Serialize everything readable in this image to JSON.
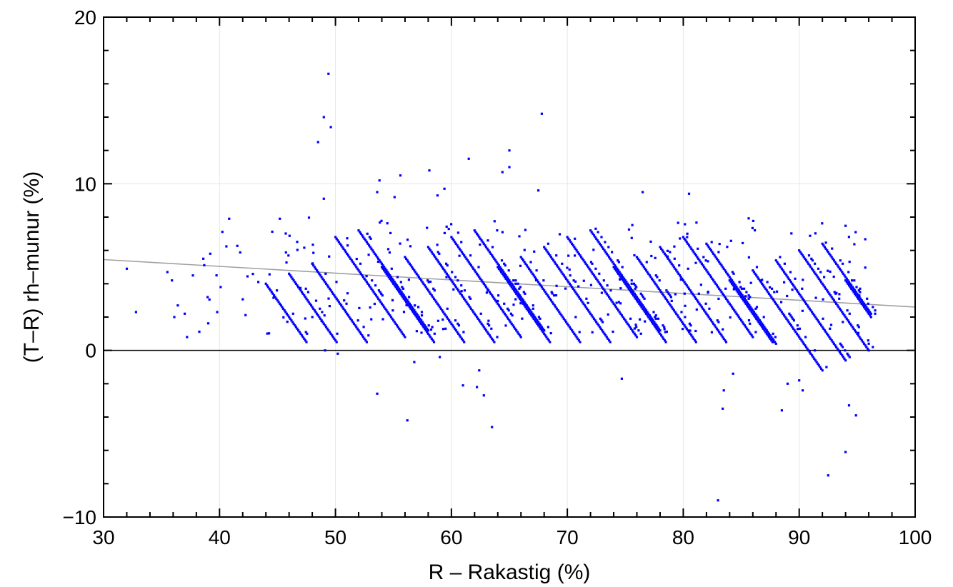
{
  "chart_data": {
    "type": "scatter",
    "xlabel": "R – Rakastig (%)",
    "ylabel": "(T–R) rh–munur (%)",
    "xlim": [
      30,
      100
    ],
    "ylim": [
      -10,
      20
    ],
    "x_ticks": [
      "30",
      "40",
      "50",
      "60",
      "70",
      "80",
      "90",
      "100"
    ],
    "y_ticks": [
      "−10",
      "0",
      "10",
      "20"
    ],
    "grid": true,
    "legend": "none",
    "colors": {
      "points": "#0000ff",
      "trend": "#a0a0a0",
      "zero_line": "#000000",
      "grid": "#e6e6e6"
    },
    "reference_line_y": 0,
    "trend_line": {
      "x": [
        30,
        100
      ],
      "y": [
        5.45,
        2.6
      ]
    },
    "bulk_description": "dense diagonal bands of points, each band following T approx constant (slope -1)",
    "bulk_bands": {
      "diffs_at_band_start": [
        5.0,
        5.6,
        6.2,
        6.8,
        7.2
      ],
      "band_starts_R": [
        44,
        46,
        48,
        50,
        52,
        54,
        56,
        58,
        60,
        62,
        64,
        66,
        68,
        70,
        72,
        74,
        76,
        78,
        80,
        82,
        84,
        86,
        88,
        90,
        92,
        94
      ],
      "band_length_R": 6.0
    },
    "outliers": [
      {
        "x": 32.0,
        "y": 4.9
      },
      {
        "x": 32.8,
        "y": 2.3
      },
      {
        "x": 35.5,
        "y": 4.7
      },
      {
        "x": 35.9,
        "y": 4.2
      },
      {
        "x": 36.1,
        "y": 2.0
      },
      {
        "x": 36.4,
        "y": 2.7
      },
      {
        "x": 37.0,
        "y": 2.2
      },
      {
        "x": 37.2,
        "y": 0.8
      },
      {
        "x": 37.7,
        "y": 4.5
      },
      {
        "x": 38.6,
        "y": 5.5
      },
      {
        "x": 39.2,
        "y": 5.8
      },
      {
        "x": 39.8,
        "y": 2.3
      },
      {
        "x": 40.1,
        "y": 3.8
      },
      {
        "x": 45.2,
        "y": 7.9
      },
      {
        "x": 48.5,
        "y": 12.5
      },
      {
        "x": 49.0,
        "y": 14.0
      },
      {
        "x": 49.4,
        "y": 16.6
      },
      {
        "x": 49.6,
        "y": 13.4
      },
      {
        "x": 49.0,
        "y": 9.1
      },
      {
        "x": 49.1,
        "y": 0.0
      },
      {
        "x": 50.2,
        "y": -0.2
      },
      {
        "x": 53.6,
        "y": 9.5
      },
      {
        "x": 53.8,
        "y": 10.2
      },
      {
        "x": 53.6,
        "y": -2.6
      },
      {
        "x": 55.1,
        "y": 9.2
      },
      {
        "x": 55.6,
        "y": 10.5
      },
      {
        "x": 56.2,
        "y": -4.2
      },
      {
        "x": 56.8,
        "y": -0.7
      },
      {
        "x": 58.1,
        "y": 10.8
      },
      {
        "x": 58.8,
        "y": 9.3
      },
      {
        "x": 59.4,
        "y": 9.7
      },
      {
        "x": 59.0,
        "y": -0.4
      },
      {
        "x": 61.0,
        "y": -2.1
      },
      {
        "x": 61.5,
        "y": 11.5
      },
      {
        "x": 62.2,
        "y": -2.2
      },
      {
        "x": 62.4,
        "y": -1.2
      },
      {
        "x": 62.8,
        "y": -2.7
      },
      {
        "x": 63.5,
        "y": -4.6
      },
      {
        "x": 64.4,
        "y": 10.7
      },
      {
        "x": 65.0,
        "y": 12.0
      },
      {
        "x": 65.0,
        "y": 11.0
      },
      {
        "x": 67.5,
        "y": 9.6
      },
      {
        "x": 67.8,
        "y": 14.2
      },
      {
        "x": 74.7,
        "y": -1.7
      },
      {
        "x": 76.5,
        "y": 9.5
      },
      {
        "x": 80.5,
        "y": 9.4
      },
      {
        "x": 83.0,
        "y": -9.0
      },
      {
        "x": 83.4,
        "y": -3.5
      },
      {
        "x": 83.5,
        "y": -2.4
      },
      {
        "x": 84.3,
        "y": -1.4
      },
      {
        "x": 88.5,
        "y": -3.6
      },
      {
        "x": 89.0,
        "y": -2.0
      },
      {
        "x": 90.3,
        "y": -2.4
      },
      {
        "x": 92.5,
        "y": -7.5
      },
      {
        "x": 94.0,
        "y": -6.1
      },
      {
        "x": 94.3,
        "y": -3.3
      },
      {
        "x": 94.9,
        "y": -3.9
      },
      {
        "x": 96.0,
        "y": 0.4
      }
    ]
  }
}
